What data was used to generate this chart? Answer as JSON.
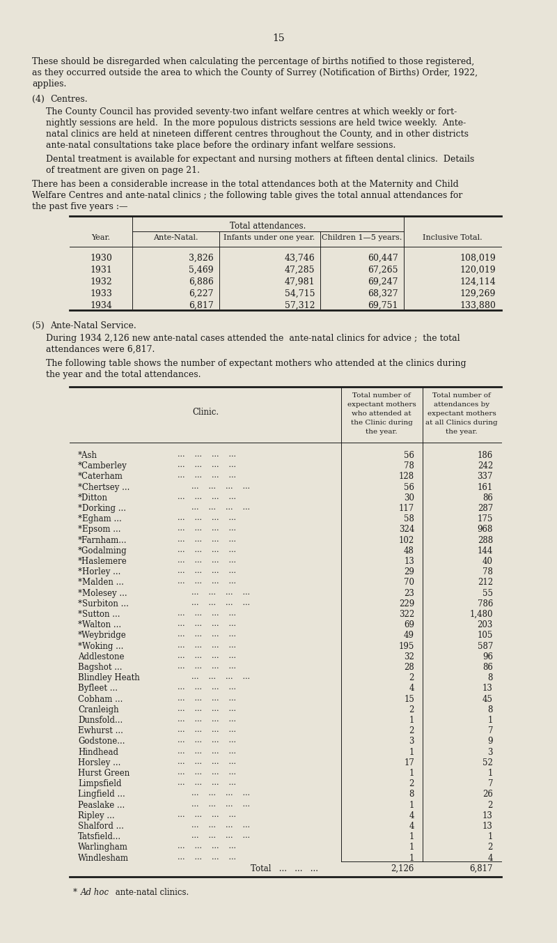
{
  "page_number": "15",
  "background_color": "#e8e4d8",
  "text_color": "#1a1a1a",
  "paragraph1_lines": [
    "These should be disregarded when calculating the percentage of births notified to those registered,",
    "as they occurred outside the area to which the County of Surrey (Notification of Births) Order, 1922,",
    "applies."
  ],
  "section4_heading_num": "(4)",
  "section4_heading_word": "Centres.",
  "section4_para1_lines": [
    "The County Council has provided seventy-two infant welfare centres at which weekly or fort-",
    "nightly sessions are held.  In the more populous districts sessions are held twice weekly.  Ante-",
    "natal clinics are held at nineteen different centres throughout the County, and in other districts",
    "ante-natal consultations take place before the ordinary infant welfare sessions."
  ],
  "section4_para2_lines": [
    "Dental treatment is available for expectant and nursing mothers at fifteen dental clinics.  Details",
    "of treatment are given on page 21."
  ],
  "section4_para3_lines": [
    "There has been a considerable increase in the total attendances both at the Maternity and Child",
    "Welfare Centres and ante-natal clinics ; the following table gives the total annual attendances for",
    "the past five years :—"
  ],
  "table1_subheader": "Total attendances.",
  "table1_col_headers": [
    "Year.",
    "Ante-Natal.",
    "Infants under one year.",
    "Children 1—5 years.",
    "Inclusive Total."
  ],
  "table1_rows": [
    [
      "1930",
      "3,826",
      "43,746",
      "60,447",
      "108,019"
    ],
    [
      "1931",
      "5,469",
      "47,285",
      "67,265",
      "120,019"
    ],
    [
      "1932",
      "6,886",
      "47,981",
      "69,247",
      "124,114"
    ],
    [
      "1933",
      "6,227",
      "54,715",
      "68,327",
      "129,269"
    ],
    [
      "1934",
      "6,817",
      "57,312",
      "69,751",
      "133,880"
    ]
  ],
  "section5_heading_num": "(5)",
  "section5_heading_word": "Ante-Natal Service.",
  "section5_para1_lines": [
    "During 1934 2,126 new ante-natal cases attended the  ante-natal clinics for advice ;  the total",
    "attendances were 6,817."
  ],
  "section5_para2_lines": [
    "The following table shows the number of expectant mothers who attended at the clinics during",
    "the year and the total attendances."
  ],
  "table2_col1_header": "Clinic.",
  "table2_col2_header_lines": [
    "Total number of",
    "expectant mothers",
    "who attended at",
    "the Clinic during",
    "the year."
  ],
  "table2_col3_header_lines": [
    "Total number of",
    "attendances by",
    "expectant mothers",
    "at all Clinics during",
    "the year."
  ],
  "table2_rows": [
    [
      "*Ash",
      "56",
      "186"
    ],
    [
      "*Camberley",
      "78",
      "242"
    ],
    [
      "*Caterham",
      "128",
      "337"
    ],
    [
      "*Chertsey ...",
      "56",
      "161"
    ],
    [
      "*Ditton",
      "30",
      "86"
    ],
    [
      "*Dorking ...",
      "117",
      "287"
    ],
    [
      "*Egham ...",
      "58",
      "175"
    ],
    [
      "*Epsom ...",
      "324",
      "968"
    ],
    [
      "*Farnham...",
      "102",
      "288"
    ],
    [
      "*Godalming",
      "48",
      "144"
    ],
    [
      "*Haslemere",
      "13",
      "40"
    ],
    [
      "*Horley ...",
      "29",
      "78"
    ],
    [
      "*Malden ...",
      "70",
      "212"
    ],
    [
      "*Molesey ...",
      "23",
      "55"
    ],
    [
      "*Surbiton ...",
      "229",
      "786"
    ],
    [
      "*Sutton ...",
      "322",
      "1,480"
    ],
    [
      "*Walton ...",
      "69",
      "203"
    ],
    [
      "*Weybridge",
      "49",
      "105"
    ],
    [
      "*Woking ...",
      "195",
      "587"
    ],
    [
      "Addlestone",
      "32",
      "96"
    ],
    [
      "Bagshot ...",
      "28",
      "86"
    ],
    [
      "Blindley Heath",
      "2",
      "8"
    ],
    [
      "Byfleet ...",
      "4",
      "13"
    ],
    [
      "Cobham ...",
      "15",
      "45"
    ],
    [
      "Cranleigh",
      "2",
      "8"
    ],
    [
      "Dunsfold...",
      "1",
      "1"
    ],
    [
      "Ewhurst ...",
      "2",
      "7"
    ],
    [
      "Godstone...",
      "3",
      "9"
    ],
    [
      "Hindhead",
      "1",
      "3"
    ],
    [
      "Horsley ...",
      "17",
      "52"
    ],
    [
      "Hurst Green",
      "1",
      "1"
    ],
    [
      "Limpsfield",
      "2",
      "7"
    ],
    [
      "Lingfield ...",
      "8",
      "26"
    ],
    [
      "Peaslake ...",
      "1",
      "2"
    ],
    [
      "Ripley ...",
      "4",
      "13"
    ],
    [
      "Shalford ...",
      "4",
      "13"
    ],
    [
      "Tatsfield...",
      "1",
      "1"
    ],
    [
      "Warlingham",
      "1",
      "2"
    ],
    [
      "Windlesham",
      "1",
      "4"
    ]
  ],
  "table2_total_val1": "2,126",
  "table2_total_val2": "6,817",
  "footnote_italic": "Ad hoc",
  "footnote_rest": " ante-natal clinics."
}
